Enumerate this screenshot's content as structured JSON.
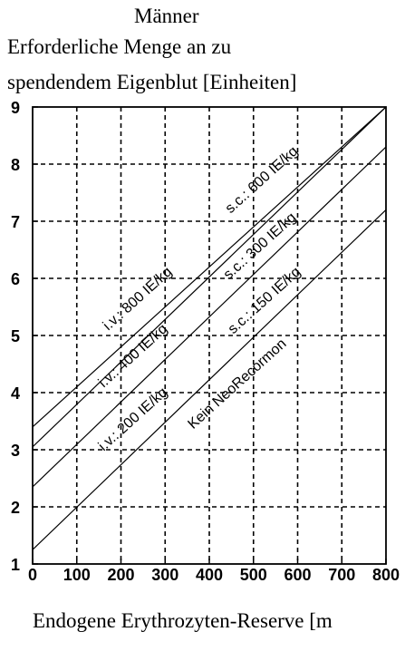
{
  "chart_data": {
    "type": "line",
    "title": "Männer",
    "subtitle_line1": "Erforderliche Menge an zu",
    "subtitle_line2": "spendendem Eigenblut [Einheiten]",
    "xlabel": "Endogene Erythrozyten-Reserve [m",
    "xlim": [
      0,
      800
    ],
    "ylim": [
      1,
      9
    ],
    "xticks": [
      "0",
      "100",
      "200",
      "300",
      "400",
      "500",
      "600",
      "700",
      "800"
    ],
    "yticks": [
      "1",
      "2",
      "3",
      "4",
      "5",
      "6",
      "7",
      "8",
      "9"
    ],
    "grid": true,
    "grid_style": "dashed",
    "series": [
      {
        "x": [
          0,
          800
        ],
        "y": [
          1.25,
          7.2
        ],
        "label": "Kein NeoRecormon"
      },
      {
        "x": [
          0,
          800
        ],
        "y": [
          2.35,
          8.3
        ],
        "label_a": "i.v.: 200 IE/kg",
        "label_b": "s.c.: 150 IE/kg"
      },
      {
        "x": [
          0,
          800
        ],
        "y": [
          3.05,
          9.0
        ],
        "label_a": "i.v.: 400 IE/kg",
        "label_b": "s.c.: 300 IE/kg"
      },
      {
        "x": [
          0,
          800
        ],
        "y": [
          3.4,
          9.0
        ],
        "label_a": "i.v.: 800 IE/kg",
        "label_b": "s.c.: 600 IE/kg"
      }
    ]
  }
}
